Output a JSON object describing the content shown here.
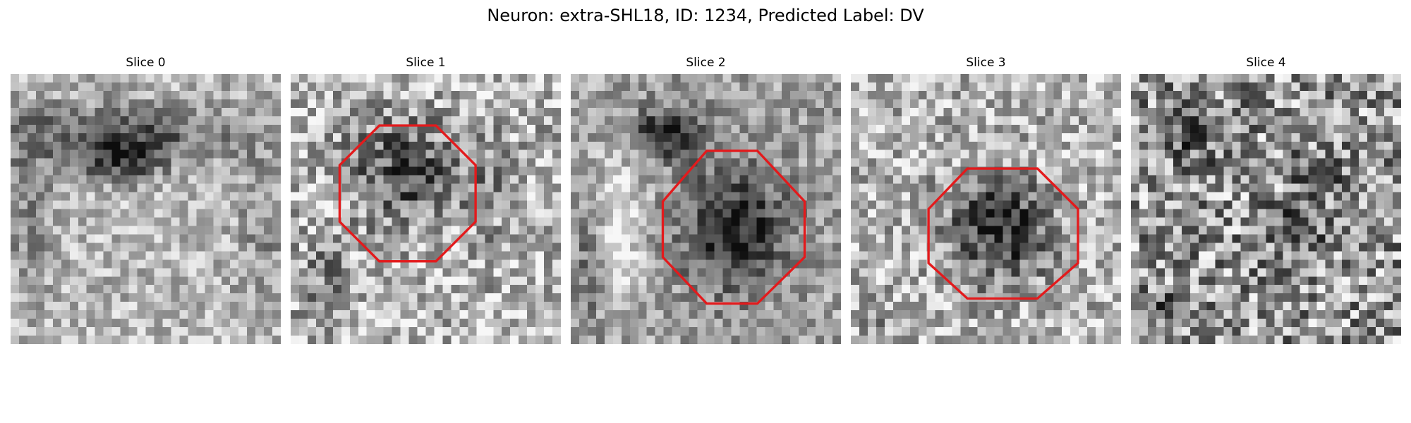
{
  "figure": {
    "title": "Neuron: extra-SHL18, ID: 1234, Predicted Label: DV"
  },
  "slices": [
    {
      "label": "Slice 0",
      "has_outline": false,
      "outline_color": "#e31a1c",
      "colormap": "grayscale"
    },
    {
      "label": "Slice 1",
      "has_outline": true,
      "outline_color": "#e31a1c",
      "colormap": "grayscale"
    },
    {
      "label": "Slice 2",
      "has_outline": true,
      "outline_color": "#e31a1c",
      "colormap": "grayscale"
    },
    {
      "label": "Slice 3",
      "has_outline": true,
      "outline_color": "#e31a1c",
      "colormap": "grayscale"
    },
    {
      "label": "Slice 4",
      "has_outline": false,
      "outline_color": "#e31a1c",
      "colormap": "grayscale"
    }
  ]
}
